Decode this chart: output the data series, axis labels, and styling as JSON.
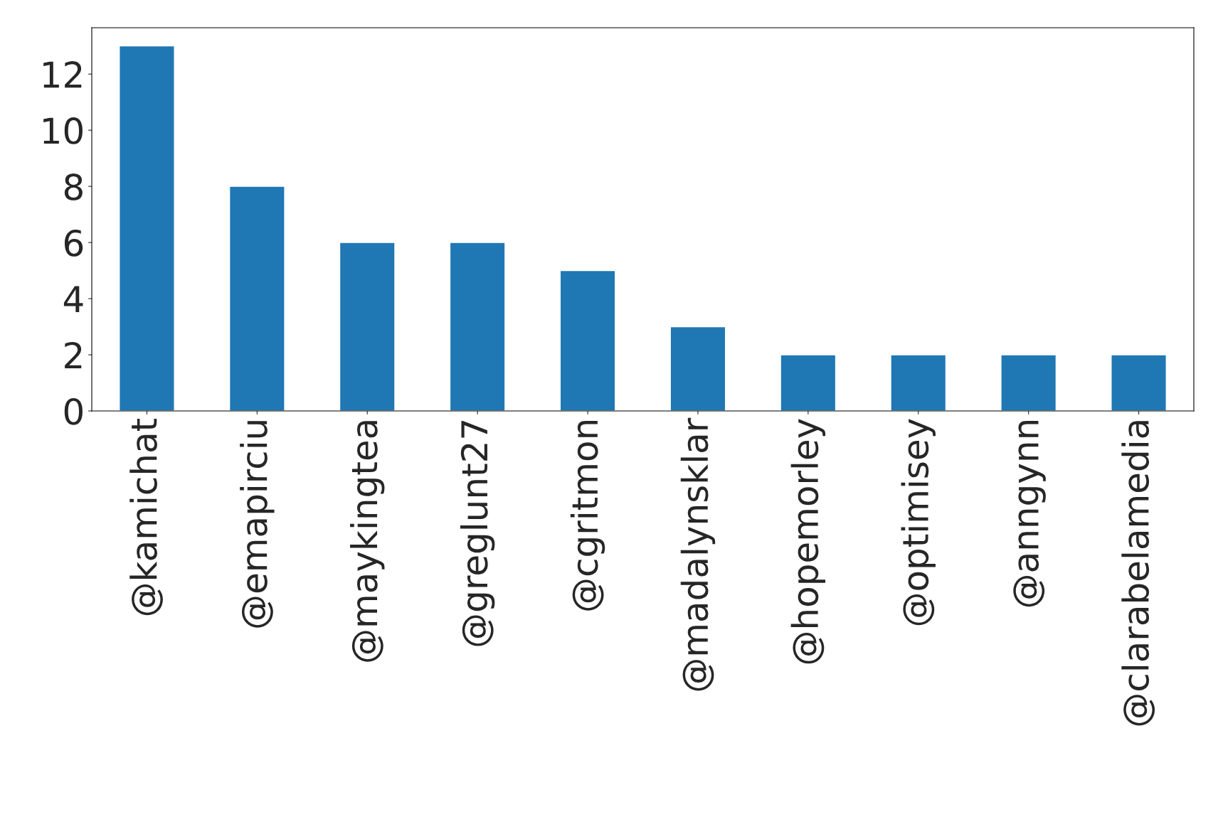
{
  "chart_data": {
    "type": "bar",
    "categories": [
      "@kamichat",
      "@emapirciu",
      "@maykingtea",
      "@greglunt27",
      "@cgritmon",
      "@madalynsklar",
      "@hopemorley",
      "@optimisey",
      "@anngynn",
      "@clarabelamedia"
    ],
    "values": [
      13,
      8,
      6,
      6,
      5,
      3,
      2,
      2,
      2,
      2
    ],
    "color": "#1f77b4",
    "ylim": [
      0,
      13.65
    ],
    "yticks": [
      0,
      2,
      4,
      6,
      8,
      10,
      12
    ],
    "grid": false,
    "legend": false
  }
}
